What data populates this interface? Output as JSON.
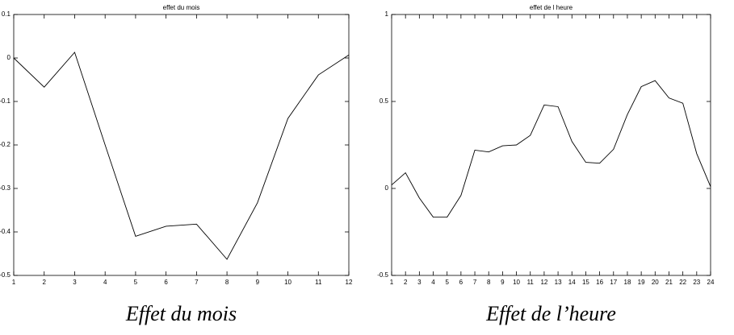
{
  "chart_data": [
    {
      "type": "line",
      "title": "effet du mois",
      "caption": "Effet du mois",
      "x": [
        1,
        2,
        3,
        4,
        5,
        6,
        7,
        8,
        9,
        10,
        11,
        12
      ],
      "series": [
        {
          "color": "#000000",
          "values": [
            0.0,
            -0.067,
            0.013,
            -0.2,
            -0.41,
            -0.387,
            -0.382,
            -0.463,
            -0.333,
            -0.139,
            -0.039,
            0.007
          ]
        }
      ],
      "xlim": [
        1,
        12
      ],
      "xticks": [
        1,
        2,
        3,
        4,
        5,
        6,
        7,
        8,
        9,
        10,
        11,
        12
      ],
      "ylim": [
        -0.5,
        0.1
      ],
      "yticks": [
        0.1,
        0,
        -0.1,
        -0.2,
        -0.3,
        -0.4,
        -0.5
      ]
    },
    {
      "type": "line",
      "title": "effet de l heure",
      "caption": "Effet de l’heure",
      "x": [
        1,
        2,
        3,
        4,
        5,
        6,
        7,
        8,
        9,
        10,
        11,
        12,
        13,
        14,
        15,
        16,
        17,
        18,
        19,
        20,
        21,
        22,
        23,
        24
      ],
      "series": [
        {
          "color": "#000000",
          "values": [
            0.02,
            0.09,
            -0.055,
            -0.165,
            -0.165,
            -0.04,
            0.22,
            0.21,
            0.245,
            0.25,
            0.305,
            0.48,
            0.47,
            0.27,
            0.15,
            0.145,
            0.225,
            0.425,
            0.585,
            0.62,
            0.52,
            0.49,
            0.2,
            0.01
          ]
        }
      ],
      "xlim": [
        1,
        24
      ],
      "xticks": [
        1,
        2,
        3,
        4,
        5,
        6,
        7,
        8,
        9,
        10,
        11,
        12,
        13,
        14,
        15,
        16,
        17,
        18,
        19,
        20,
        21,
        22,
        23,
        24
      ],
      "ylim": [
        -0.5,
        1
      ],
      "yticks": [
        1,
        0.5,
        0,
        -0.5
      ]
    }
  ]
}
